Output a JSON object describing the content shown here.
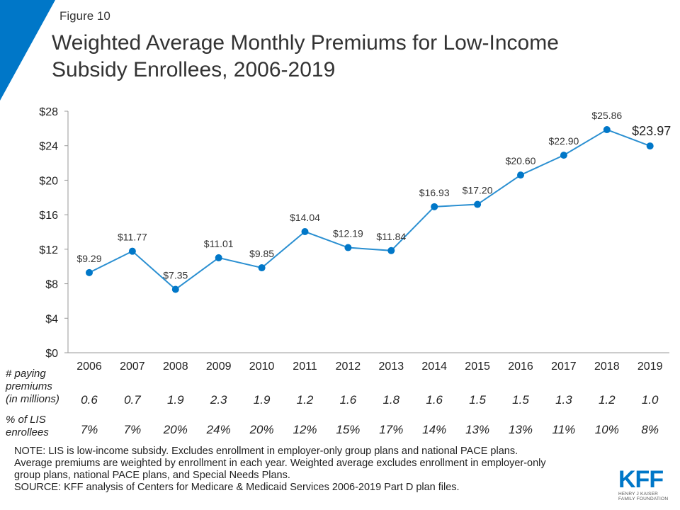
{
  "figure_label": "Figure 10",
  "title_line1": "Weighted Average Monthly Premiums for Low-Income",
  "title_line2": "Subsidy Enrollees, 2006-2019",
  "colors": {
    "accent": "#0077c8",
    "line": "#2a8fd1",
    "axis": "#999999"
  },
  "chart_data": {
    "type": "line",
    "title": "Weighted Average Monthly Premiums for Low-Income Subsidy Enrollees, 2006-2019",
    "categories": [
      "2006",
      "2007",
      "2008",
      "2009",
      "2010",
      "2011",
      "2012",
      "2013",
      "2014",
      "2015",
      "2016",
      "2017",
      "2018",
      "2019"
    ],
    "series": [
      {
        "values": [
          9.29,
          11.77,
          7.35,
          11.01,
          9.85,
          14.04,
          12.19,
          11.84,
          16.93,
          17.2,
          20.6,
          22.9,
          25.86,
          23.97
        ],
        "data_labels": [
          "$9.29",
          "$11.77",
          "$7.35",
          "$11.01",
          "$9.85",
          "$14.04",
          "$12.19",
          "$11.84",
          "$16.93",
          "$17.20",
          "$20.60",
          "$22.90",
          "$25.86",
          "$23.97"
        ]
      }
    ],
    "yticks": [
      "$0",
      "$4",
      "$8",
      "$12",
      "$16",
      "$20",
      "$24",
      "$28"
    ],
    "ylim": [
      0,
      28
    ],
    "grid": false,
    "legend": "none"
  },
  "table": {
    "paying_label": [
      "# paying",
      "premiums",
      "(in millions)"
    ],
    "paying_values": [
      "0.6",
      "0.7",
      "1.9",
      "2.3",
      "1.9",
      "1.2",
      "1.6",
      "1.8",
      "1.6",
      "1.5",
      "1.5",
      "1.3",
      "1.2",
      "1.0"
    ],
    "lis_label": [
      "% of LIS",
      "enrollees"
    ],
    "lis_values": [
      "7%",
      "7%",
      "20%",
      "24%",
      "20%",
      "12%",
      "15%",
      "17%",
      "14%",
      "13%",
      "13%",
      "11%",
      "10%",
      "8%"
    ]
  },
  "notes": [
    "NOTE: LIS is low-income subsidy. Excludes enrollment in employer-only group plans and national PACE plans.",
    "Average premiums are weighted by enrollment in each year. Weighted average excludes enrollment in employer-only",
    "group plans, national PACE plans, and Special Needs Plans.",
    "SOURCE: KFF analysis of Centers for Medicare & Medicaid Services 2006-2019 Part D plan files."
  ],
  "logo": {
    "mark": "KFF",
    "sub1": "HENRY J KAISER",
    "sub2": "FAMILY FOUNDATION"
  }
}
